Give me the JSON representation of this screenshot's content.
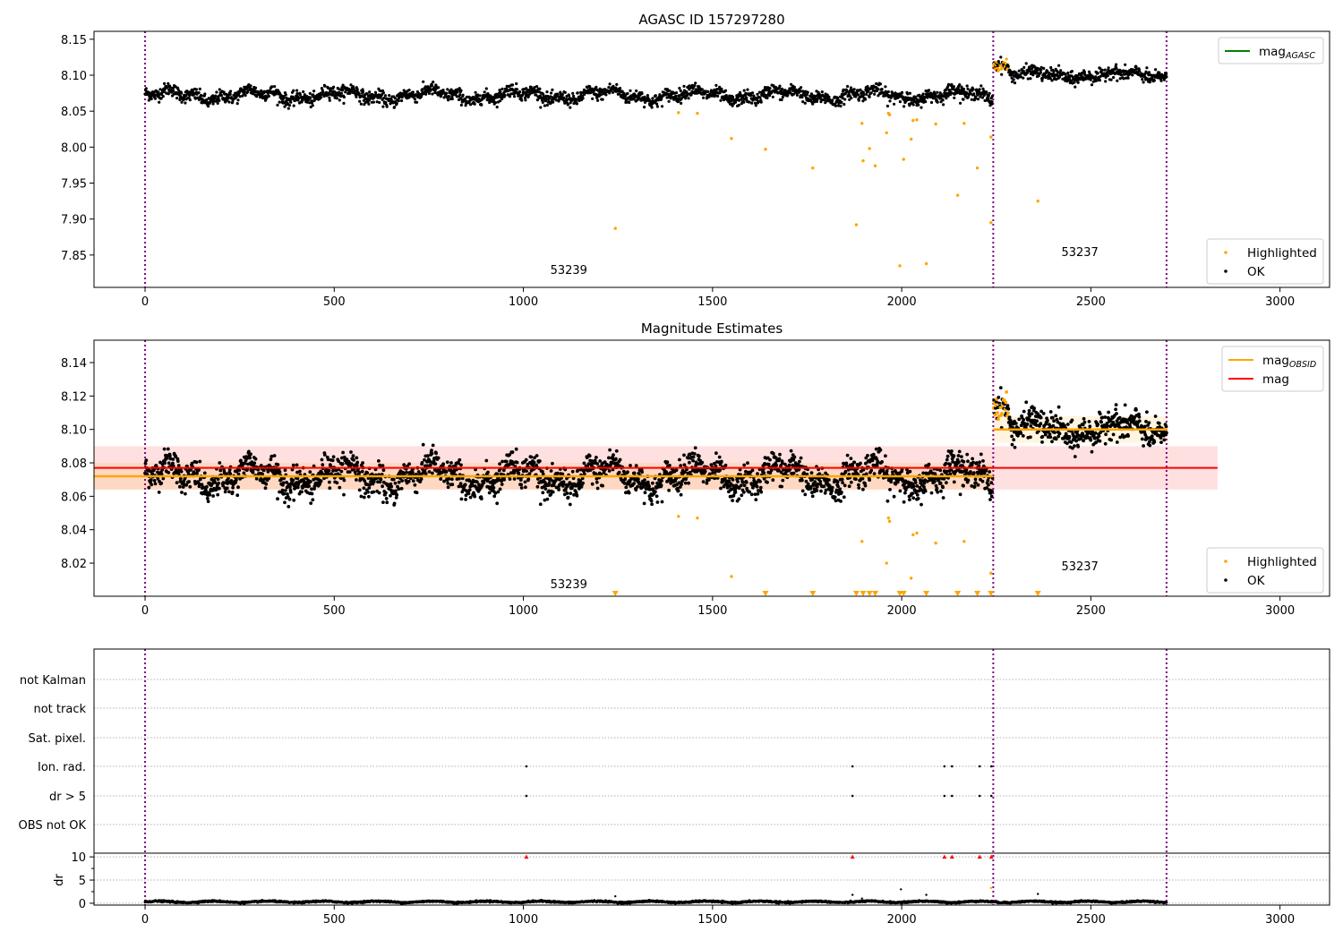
{
  "chart_data": [
    {
      "type": "scatter",
      "title": "AGASC ID 157297280",
      "xlim": [
        -135,
        3131
      ],
      "ylim": [
        7.805,
        8.161
      ],
      "xticks": [
        0,
        500,
        1000,
        1500,
        2000,
        2500,
        3000
      ],
      "yticks": [
        7.85,
        7.9,
        7.95,
        8.0,
        8.05,
        8.1,
        8.15
      ],
      "legend_top": {
        "entries": [
          {
            "label": "mag",
            "sub": "AGASC",
            "color": "#008000"
          }
        ],
        "placement": "top-right"
      },
      "legend_bottom": {
        "entries": [
          {
            "label": "Highlighted",
            "color": "#ffa500"
          },
          {
            "label": "OK",
            "color": "#000000"
          }
        ],
        "placement": "bottom-right"
      },
      "obsid_labels": [
        {
          "text": "53239",
          "x": 1120,
          "y": 7.83
        },
        {
          "text": "53237",
          "x": 2471,
          "y": 7.855
        }
      ]
    },
    {
      "type": "scatter",
      "title": "Magnitude Estimates",
      "xlim": [
        -135,
        3131
      ],
      "ylim": [
        8.0002,
        8.1534
      ],
      "xticks": [
        0,
        500,
        1000,
        1500,
        2000,
        2500,
        3000
      ],
      "yticks": [
        8.02,
        8.04,
        8.06,
        8.08,
        8.1,
        8.12,
        8.14
      ],
      "legend_top": {
        "entries": [
          {
            "label": "mag",
            "sub": "OBSID",
            "color": "#ffa500"
          },
          {
            "label": "mag",
            "sub": "",
            "color": "#ff0000"
          }
        ],
        "placement": "top-right"
      },
      "legend_bottom": {
        "entries": [
          {
            "label": "Highlighted",
            "color": "#ffa500"
          },
          {
            "label": "OK",
            "color": "#000000"
          }
        ],
        "placement": "bottom-right"
      },
      "obsid_labels": [
        {
          "text": "53239",
          "x": 1120,
          "y": 8.0077
        },
        {
          "text": "53237",
          "x": 2471,
          "y": 8.0183
        }
      ],
      "mag": {
        "value": 8.077,
        "band": [
          8.064,
          8.09
        ],
        "x_range": [
          -135,
          2835
        ],
        "color": "#ff0000"
      },
      "mag_obsid": [
        {
          "obsid": "53239",
          "value": 8.072,
          "band": [
            8.064,
            8.08
          ],
          "x_range": [
            -135,
            2242
          ]
        },
        {
          "obsid": "53237",
          "value": 8.1,
          "band": [
            8.092,
            8.108
          ],
          "x_range": [
            2242,
            2703
          ]
        }
      ]
    },
    {
      "type": "scatter",
      "xlim": [
        -135,
        3131
      ],
      "categories": [
        "OBS not OK",
        "dr > 5",
        "Ion. rad.",
        "Sat. pixel.",
        "not track",
        "not Kalman"
      ],
      "flags": {
        "Ion. rad.": [
          1008,
          1870,
          2113,
          2133,
          2206,
          2237
        ],
        "dr > 5": [
          1008,
          1870,
          2113,
          2133,
          2206,
          2237
        ]
      },
      "dr_ylabel": "dr",
      "dr_ylim": [
        -0.4,
        10.8
      ],
      "dr_yticks": [
        0,
        5,
        10
      ],
      "dr_high_markers": [
        1008,
        1870,
        2113,
        2133,
        2206,
        2237
      ],
      "dr_outliers": [
        [
          1243,
          1.5
        ],
        [
          1870,
          1.8
        ],
        [
          1895,
          1.0
        ],
        [
          1998,
          3.0
        ],
        [
          2065,
          1.8
        ],
        [
          2236,
          3.3
        ],
        [
          2360,
          2.0
        ]
      ],
      "xticks": [
        0,
        500,
        1000,
        1500,
        2000,
        2500,
        3000
      ]
    }
  ],
  "obsid_boundaries": [
    0,
    2242,
    2700
  ],
  "segments": [
    {
      "obsid": "53239",
      "x_start": 0,
      "x_end": 2240,
      "n": 2240,
      "mean": 8.072,
      "drift": 0.006,
      "noise": 0.0045
    },
    {
      "obsid": "53237",
      "x_start": 2243,
      "x_end": 2700,
      "n": 457,
      "mean": 8.1,
      "drift": 0.004,
      "noise": 0.0045,
      "initial_offset": 0.021,
      "initial_len": 40
    }
  ],
  "highlighted": [
    [
      1243,
      7.887
    ],
    [
      1410,
      8.048
    ],
    [
      1460,
      8.047
    ],
    [
      1550,
      8.012
    ],
    [
      1640,
      7.997
    ],
    [
      1765,
      7.971
    ],
    [
      1880,
      7.892
    ],
    [
      1895,
      8.033
    ],
    [
      1898,
      7.981
    ],
    [
      1915,
      7.998
    ],
    [
      1930,
      7.974
    ],
    [
      1960,
      8.02
    ],
    [
      1965,
      8.047
    ],
    [
      1968,
      8.045
    ],
    [
      1995,
      7.835
    ],
    [
      2005,
      7.983
    ],
    [
      2025,
      8.011
    ],
    [
      2030,
      8.037
    ],
    [
      2040,
      8.038
    ],
    [
      2065,
      7.838
    ],
    [
      2090,
      8.032
    ],
    [
      2148,
      7.933
    ],
    [
      2165,
      8.033
    ],
    [
      2200,
      7.971
    ],
    [
      2236,
      8.014
    ],
    [
      2236,
      7.895
    ],
    [
      2360,
      7.925
    ]
  ],
  "colors": {
    "ok": "#000000",
    "highlighted": "#ffa500",
    "boundary": "#800080",
    "mag": "#ff0000",
    "mag_obsid": "#ffa500",
    "mag_agasc": "#008000"
  }
}
